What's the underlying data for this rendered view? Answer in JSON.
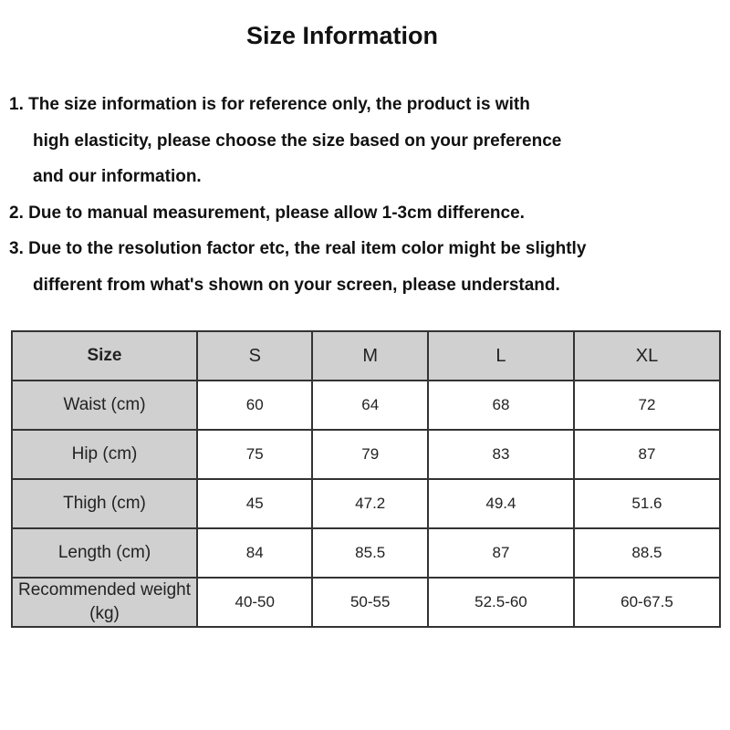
{
  "title": "Size Information",
  "notes": [
    {
      "lines": [
        "1. The size information is for reference only, the product is with",
        "high elasticity, please choose the size based on your preference",
        "and our information."
      ]
    },
    {
      "lines": [
        "2. Due to manual measurement, please allow 1-3cm difference."
      ]
    },
    {
      "lines": [
        "3. Due to the resolution factor etc, the real item color might be slightly",
        "different from what's shown on your screen, please understand."
      ]
    }
  ],
  "table": {
    "header": [
      "Size",
      "S",
      "M",
      "L",
      "XL"
    ],
    "rows": [
      [
        "Waist (cm)",
        "60",
        "64",
        "68",
        "72"
      ],
      [
        "Hip (cm)",
        "75",
        "79",
        "83",
        "87"
      ],
      [
        "Thigh (cm)",
        "45",
        "47.2",
        "49.4",
        "51.6"
      ],
      [
        "Length (cm)",
        "84",
        "85.5",
        "87",
        "88.5"
      ],
      [
        "Recommended weight (kg)",
        "40-50",
        "50-55",
        "52.5-60",
        "60-67.5"
      ]
    ]
  }
}
